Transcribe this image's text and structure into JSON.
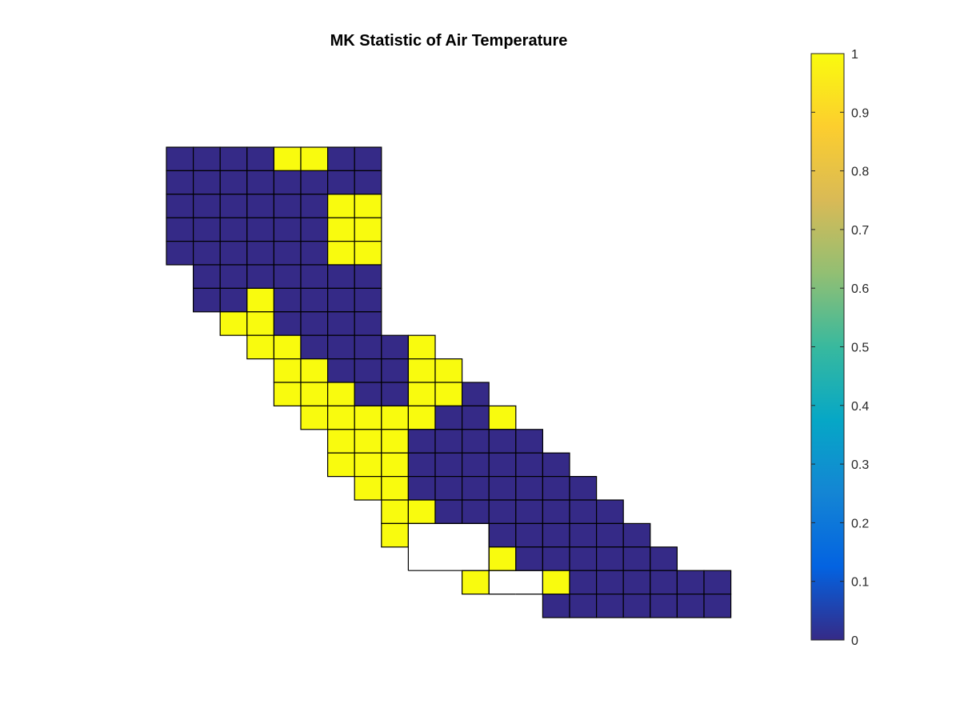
{
  "chart_data": {
    "type": "heatmap",
    "title": "MK Statistic of Air Temperature",
    "xlabel": "",
    "ylabel": "",
    "value_range": [
      0,
      1
    ],
    "grid_columns": 21,
    "grid_rows": 20,
    "legend_placement": "right",
    "colorbar": {
      "ticks": [
        0,
        0.1,
        0.2,
        0.3,
        0.4,
        0.5,
        0.6,
        0.7,
        0.8,
        0.9,
        1
      ],
      "tick_labels": [
        "0",
        "0.1",
        "0.2",
        "0.3",
        "0.4",
        "0.5",
        "0.6",
        "0.7",
        "0.8",
        "0.9",
        "1"
      ],
      "colormap": "parula",
      "colors": [
        "#352a87",
        "#0363e1",
        "#1485d4",
        "#06a7c6",
        "#38b99e",
        "#92bf73",
        "#d9ba56",
        "#fcce2e",
        "#f9fb0e"
      ]
    },
    "low_color": "#352a87",
    "high_color": "#f9fb0e",
    "missing_color": "#ffffff",
    "rows": [
      {
        "row": 1,
        "start_col": 1,
        "values": [
          0,
          0,
          0,
          0,
          1,
          1,
          0,
          0
        ]
      },
      {
        "row": 2,
        "start_col": 1,
        "values": [
          0,
          0,
          0,
          0,
          0,
          0,
          0,
          0
        ]
      },
      {
        "row": 3,
        "start_col": 1,
        "values": [
          0,
          0,
          0,
          0,
          0,
          0,
          1,
          1
        ]
      },
      {
        "row": 4,
        "start_col": 1,
        "values": [
          0,
          0,
          0,
          0,
          0,
          0,
          1,
          1
        ]
      },
      {
        "row": 5,
        "start_col": 1,
        "values": [
          0,
          0,
          0,
          0,
          0,
          0,
          1,
          1
        ]
      },
      {
        "row": 6,
        "start_col": 2,
        "values": [
          0,
          0,
          0,
          0,
          0,
          0,
          0
        ]
      },
      {
        "row": 7,
        "start_col": 2,
        "values": [
          0,
          0,
          1,
          0,
          0,
          0,
          0
        ]
      },
      {
        "row": 8,
        "start_col": 3,
        "values": [
          1,
          1,
          0,
          0,
          0,
          0
        ]
      },
      {
        "row": 9,
        "start_col": 4,
        "values": [
          1,
          1,
          0,
          0,
          0,
          0,
          1
        ]
      },
      {
        "row": 10,
        "start_col": 5,
        "values": [
          1,
          1,
          0,
          0,
          0,
          1,
          1
        ]
      },
      {
        "row": 11,
        "start_col": 5,
        "values": [
          1,
          1,
          1,
          0,
          0,
          1,
          1,
          0
        ]
      },
      {
        "row": 12,
        "start_col": 6,
        "values": [
          1,
          1,
          1,
          1,
          1,
          0,
          0,
          1
        ]
      },
      {
        "row": 13,
        "start_col": 7,
        "values": [
          1,
          1,
          1,
          0,
          0,
          0,
          0,
          0
        ]
      },
      {
        "row": 14,
        "start_col": 7,
        "values": [
          1,
          1,
          1,
          0,
          0,
          0,
          0,
          0,
          0
        ]
      },
      {
        "row": 15,
        "start_col": 8,
        "values": [
          1,
          1,
          0,
          0,
          0,
          0,
          0,
          0,
          0
        ]
      },
      {
        "row": 16,
        "start_col": 9,
        "values": [
          1,
          1,
          0,
          0,
          0,
          0,
          0,
          0,
          0
        ]
      },
      {
        "row": 17,
        "start_col": 9,
        "values": [
          1,
          null,
          null,
          null,
          0,
          0,
          0,
          0,
          0,
          0
        ]
      },
      {
        "row": 18,
        "start_col": 10,
        "values": [
          null,
          null,
          null,
          1,
          0,
          0,
          0,
          0,
          0,
          0
        ]
      },
      {
        "row": 19,
        "start_col": 12,
        "values": [
          1,
          null,
          null,
          1,
          0,
          0,
          0,
          0,
          0,
          0
        ]
      },
      {
        "row": 20,
        "start_col": 15,
        "values": [
          0,
          0,
          0,
          0,
          0,
          0,
          0
        ]
      }
    ]
  }
}
